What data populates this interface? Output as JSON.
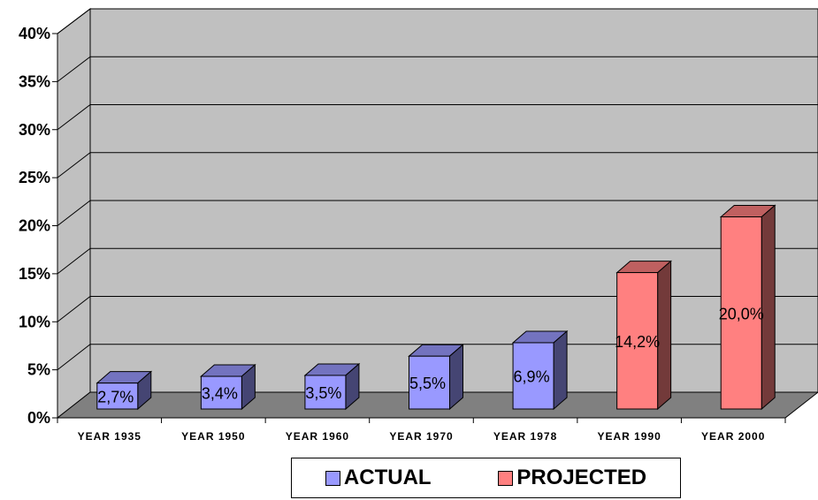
{
  "chart_data": {
    "type": "bar",
    "categories": [
      "YEAR 1935",
      "YEAR 1950",
      "YEAR 1960",
      "YEAR 1970",
      "YEAR 1978",
      "YEAR 1990",
      "YEAR 2000"
    ],
    "values": [
      2.7,
      3.4,
      3.5,
      5.5,
      6.9,
      14.2,
      20.0
    ],
    "data_labels": [
      "2,7%",
      "3,4%",
      "3,5%",
      "5,5%",
      "6,9%",
      "14,2%",
      "20,0%"
    ],
    "series_of_bar": [
      "ACTUAL",
      "ACTUAL",
      "ACTUAL",
      "ACTUAL",
      "ACTUAL",
      "PROJECTED",
      "PROJECTED"
    ],
    "series": [
      {
        "name": "ACTUAL",
        "color": "#9999ff"
      },
      {
        "name": "PROJECTED",
        "color": "#ff8080"
      }
    ],
    "yticks": [
      "0%",
      "5%",
      "10%",
      "15%",
      "20%",
      "25%",
      "30%",
      "35%",
      "40%"
    ],
    "ylim": [
      0,
      40
    ],
    "ystep": 5,
    "grid": true,
    "style": "3d",
    "legend_position": "bottom",
    "title": "",
    "xlabel": "",
    "ylabel": ""
  }
}
